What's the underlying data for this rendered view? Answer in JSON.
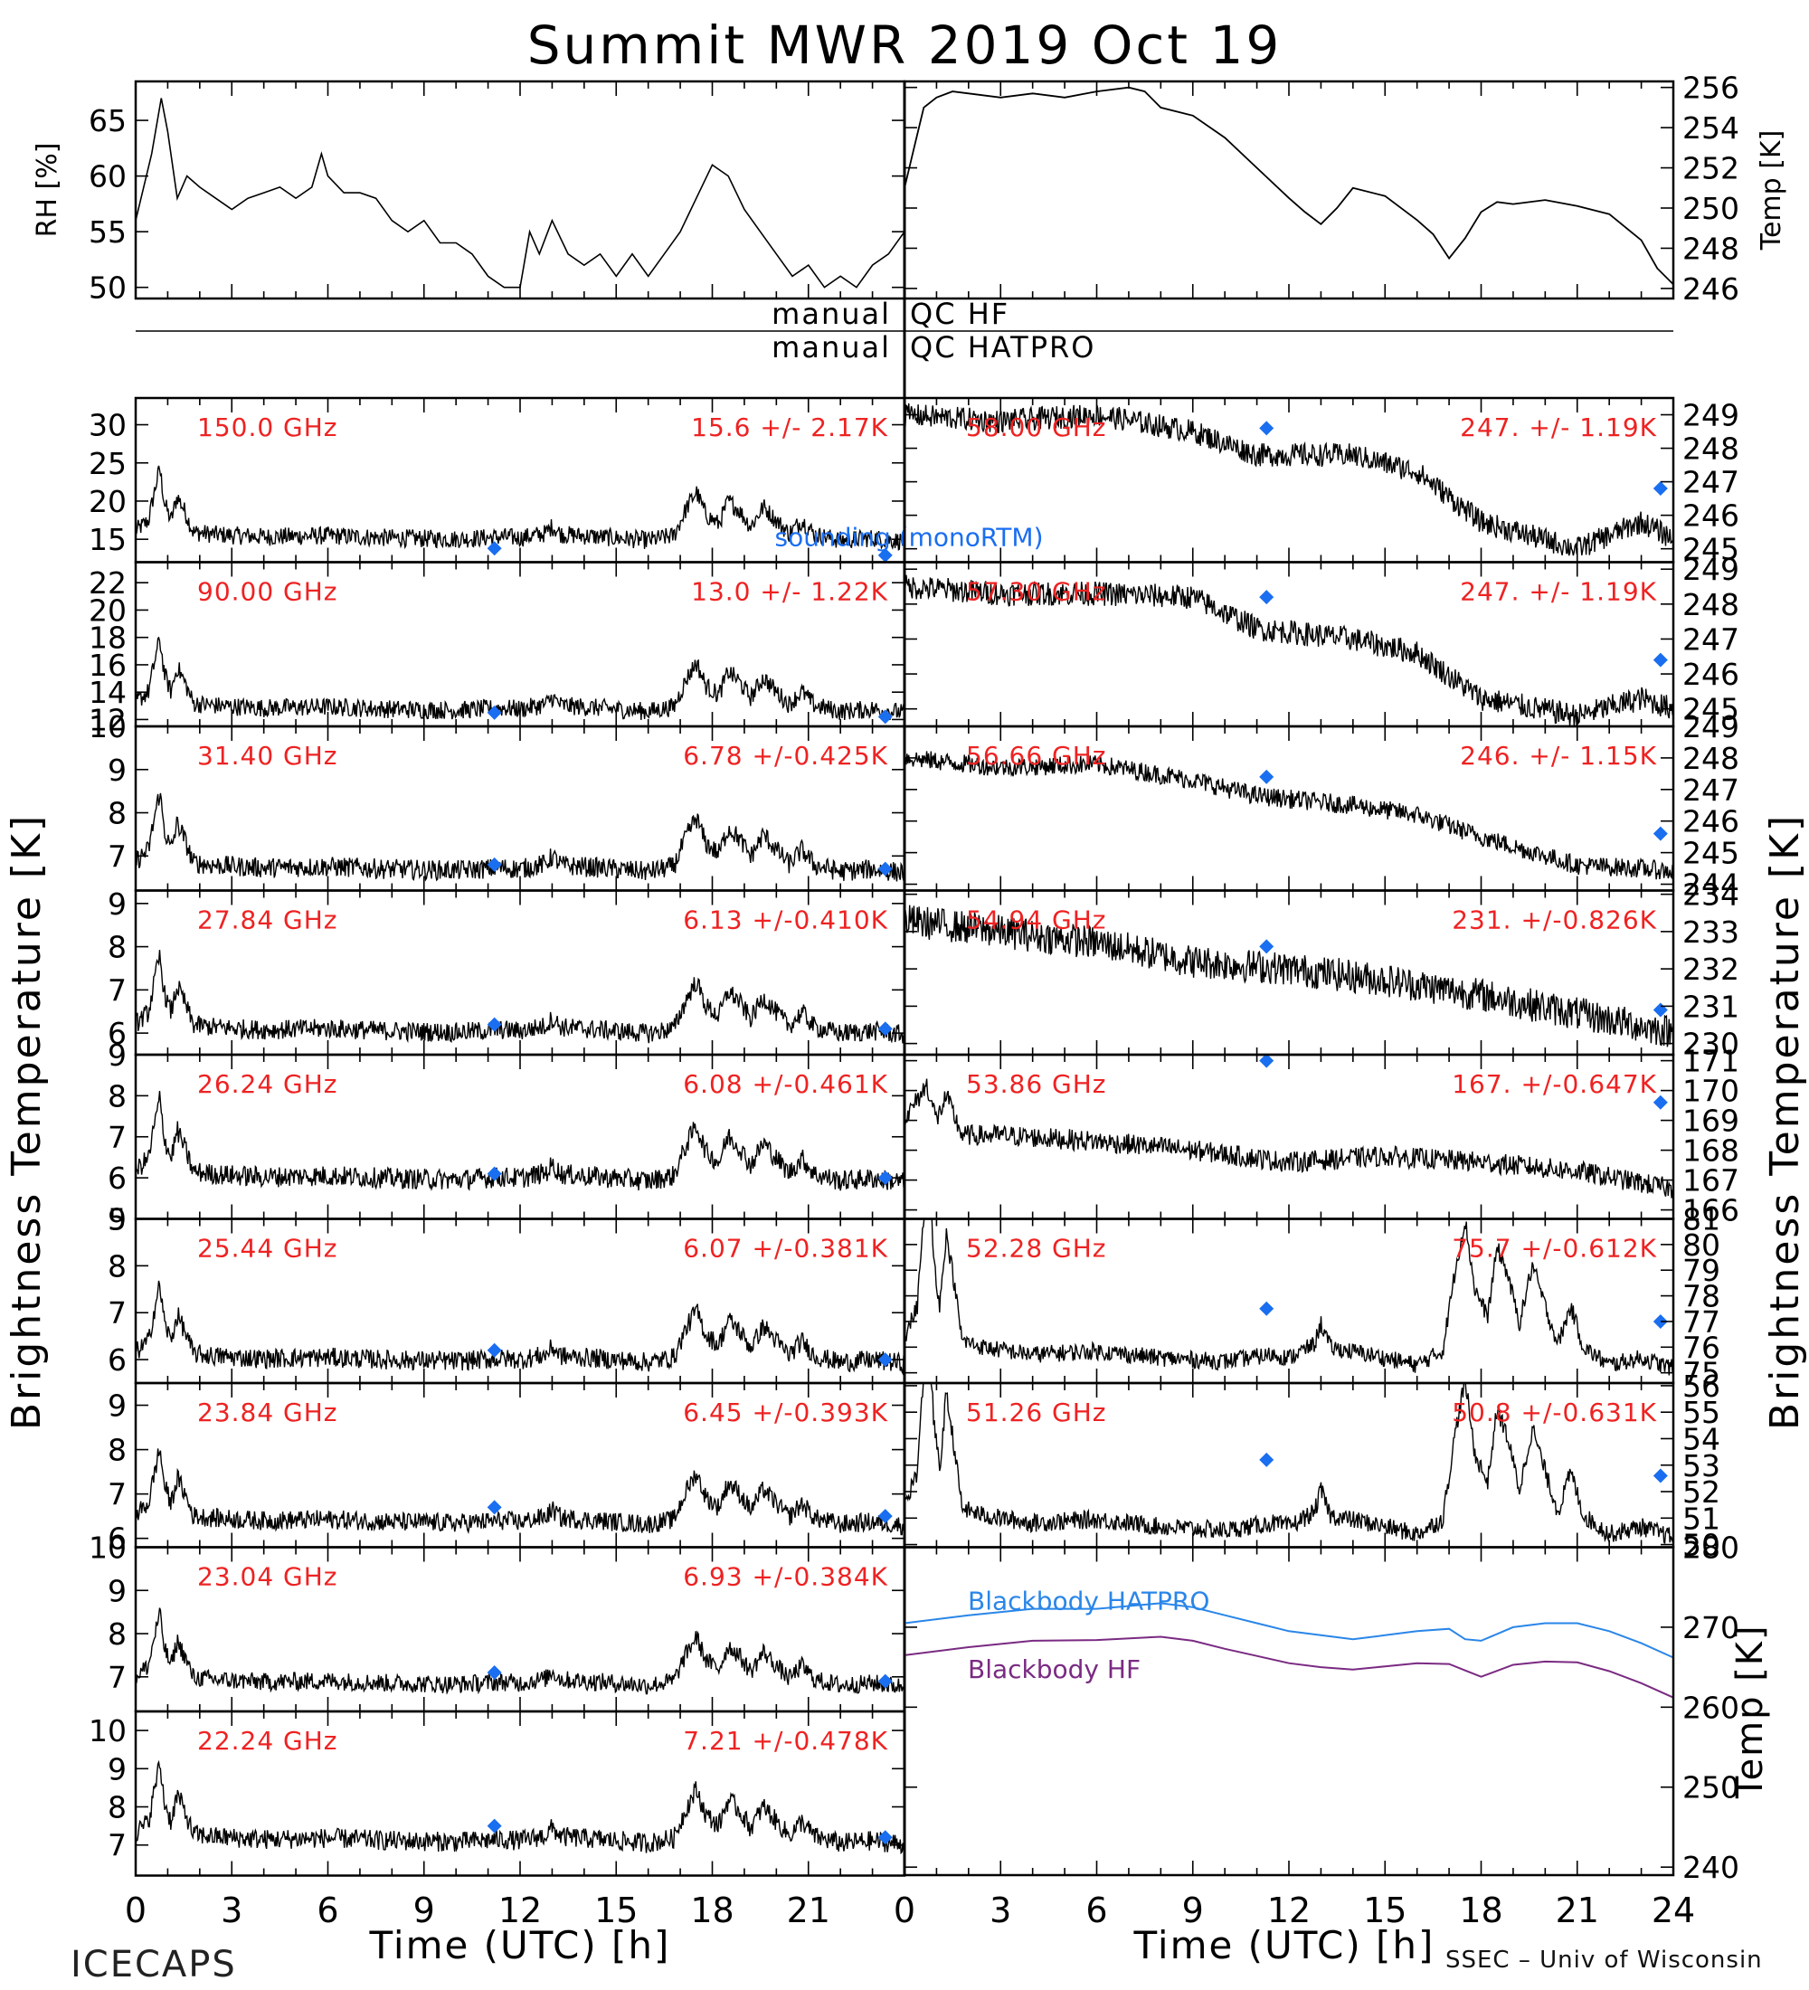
{
  "title": "Summit MWR 2019 Oct 19",
  "footer": {
    "left": "ICECAPS",
    "right": "SSEC – Univ of Wisconsin"
  },
  "colors": {
    "trace": "#000000",
    "sonde": "#1a6ef0",
    "label": "#ee2222",
    "bb_hatpro": "#2a86e8",
    "bb_hf": "#7a2a82"
  },
  "icons": {
    "sonde_marker": "diamond"
  },
  "axes": {
    "left_ylabel": "Brightness Temperature [K]",
    "right_ylabel": "Brightness Temperature [K]",
    "xlabel": "Time (UTC) [h]",
    "xticks": [
      "0",
      "3",
      "6",
      "9",
      "12",
      "15",
      "18",
      "21"
    ],
    "xticks_right": [
      "0",
      "3",
      "6",
      "9",
      "12",
      "15",
      "18",
      "21",
      "24"
    ]
  },
  "qc": {
    "hf": "QC HF",
    "hatpro": "QC HATPRO",
    "manual": "manual"
  },
  "chart_data": [
    {
      "id": "rh",
      "type": "line",
      "ylabel": "RH [%]",
      "xlim": [
        0,
        24
      ],
      "ylim": [
        49,
        68.5
      ],
      "yticks": [
        "50",
        "55",
        "60",
        "65"
      ],
      "x": [
        0,
        0.5,
        0.8,
        1,
        1.3,
        1.6,
        2,
        2.5,
        3,
        3.5,
        4,
        4.5,
        5,
        5.5,
        5.8,
        6,
        6.5,
        7,
        7.5,
        8,
        8.5,
        9,
        9.5,
        10,
        10.5,
        11,
        11.5,
        12,
        12.3,
        12.6,
        13,
        13.5,
        14,
        14.5,
        15,
        15.5,
        16,
        16.5,
        17,
        17.5,
        18,
        18.5,
        19,
        19.5,
        20,
        20.5,
        21,
        21.5,
        22,
        22.5,
        23,
        23.5,
        24
      ],
      "y": [
        56,
        62,
        67,
        64,
        58,
        60,
        59,
        58,
        57,
        58,
        58.5,
        59,
        58,
        59,
        62,
        60,
        58.5,
        58.5,
        58,
        56,
        55,
        56,
        54,
        54,
        53,
        51,
        50,
        50,
        55,
        53,
        56,
        53,
        52,
        53,
        51,
        53,
        51,
        53,
        55,
        58,
        61,
        60,
        57,
        55,
        53,
        51,
        52,
        50,
        51,
        50,
        52,
        53,
        55
      ]
    },
    {
      "id": "temp",
      "type": "line",
      "ylabel": "Temp [K]",
      "xlim": [
        0,
        24
      ],
      "ylim": [
        245.5,
        256.3
      ],
      "yticks": [
        "246",
        "248",
        "250",
        "252",
        "254",
        "256"
      ],
      "x": [
        0,
        0.3,
        0.6,
        1,
        1.5,
        2,
        3,
        4,
        5,
        6,
        7,
        7.5,
        8,
        9,
        10,
        11,
        12,
        12.5,
        13,
        13.5,
        14,
        15,
        16,
        16.5,
        17,
        17.5,
        18,
        18.5,
        19,
        20,
        21,
        22,
        23,
        23.5,
        24
      ],
      "y": [
        251,
        253,
        255,
        255.5,
        255.8,
        255.7,
        255.5,
        255.7,
        255.5,
        255.8,
        256,
        255.8,
        255,
        254.6,
        253.5,
        252,
        250.5,
        249.8,
        249.2,
        250,
        251,
        250.6,
        249.4,
        248.7,
        247.5,
        248.5,
        249.8,
        250.3,
        250.2,
        250.4,
        250.1,
        249.7,
        248.4,
        247,
        246.2
      ]
    },
    {
      "id": "ch150",
      "type": "line",
      "label": "150.0 GHz",
      "stats": "15.6 +/-  2.17K",
      "ylim": [
        12,
        33.5
      ],
      "yticks": [
        "15",
        "20",
        "25",
        "30"
      ],
      "profile": "hf",
      "baseline": 15.6,
      "amp": 2.17,
      "spike_scale": 0.7,
      "sonde": [
        [
          11.2,
          13.8
        ],
        [
          23.4,
          12.9
        ]
      ],
      "extra_text": "sounding (monoRTM)"
    },
    {
      "id": "ch90",
      "type": "line",
      "label": "90.00 GHz",
      "stats": "13.0 +/-  1.22K",
      "ylim": [
        11.5,
        23.5
      ],
      "yticks": [
        "12",
        "14",
        "16",
        "18",
        "20",
        "22"
      ],
      "profile": "hf",
      "baseline": 13.0,
      "amp": 1.22,
      "spike_scale": 0.7,
      "sonde": [
        [
          11.2,
          12.5
        ],
        [
          23.4,
          12.2
        ]
      ]
    },
    {
      "id": "ch3140",
      "type": "line",
      "label": "31.40 GHz",
      "stats": "6.78 +/-0.425K",
      "ylim": [
        6.2,
        10
      ],
      "yticks": [
        "7",
        "8",
        "9",
        "10"
      ],
      "profile": "hf",
      "baseline": 6.78,
      "amp": 0.425,
      "spike_scale": 0.7,
      "sonde": [
        [
          11.2,
          6.8
        ],
        [
          23.4,
          6.7
        ]
      ]
    },
    {
      "id": "ch2784",
      "type": "line",
      "label": "27.84 GHz",
      "stats": "6.13 +/-0.410K",
      "ylim": [
        5.5,
        9.3
      ],
      "yticks": [
        "6",
        "7",
        "8",
        "9"
      ],
      "profile": "hf",
      "baseline": 6.13,
      "amp": 0.41,
      "spike_scale": 0.7,
      "sonde": [
        [
          11.2,
          6.2
        ],
        [
          23.4,
          6.1
        ]
      ]
    },
    {
      "id": "ch2624",
      "type": "line",
      "label": "26.24 GHz",
      "stats": "6.08 +/-0.461K",
      "ylim": [
        5,
        9
      ],
      "yticks": [
        "5",
        "6",
        "7",
        "8",
        "9"
      ],
      "profile": "hf",
      "baseline": 6.08,
      "amp": 0.461,
      "spike_scale": 0.7,
      "sonde": [
        [
          11.2,
          6.1
        ],
        [
          23.4,
          6.0
        ]
      ]
    },
    {
      "id": "ch2544",
      "type": "line",
      "label": "25.44 GHz",
      "stats": "6.07 +/-0.381K",
      "ylim": [
        5.5,
        9
      ],
      "yticks": [
        "6",
        "7",
        "8",
        "9"
      ],
      "profile": "hf",
      "baseline": 6.07,
      "amp": 0.381,
      "spike_scale": 0.7,
      "sonde": [
        [
          11.2,
          6.2
        ],
        [
          23.4,
          6.0
        ]
      ]
    },
    {
      "id": "ch2384",
      "type": "line",
      "label": "23.84 GHz",
      "stats": "6.45 +/-0.393K",
      "ylim": [
        5.8,
        9.5
      ],
      "yticks": [
        "6",
        "7",
        "8",
        "9"
      ],
      "profile": "hf",
      "baseline": 6.45,
      "amp": 0.393,
      "spike_scale": 0.7,
      "sonde": [
        [
          11.2,
          6.7
        ],
        [
          23.4,
          6.5
        ]
      ]
    },
    {
      "id": "ch2304",
      "type": "line",
      "label": "23.04 GHz",
      "stats": "6.93 +/-0.384K",
      "ylim": [
        6.2,
        10
      ],
      "yticks": [
        "7",
        "8",
        "9",
        "10"
      ],
      "profile": "hf",
      "baseline": 6.93,
      "amp": 0.384,
      "spike_scale": 0.7,
      "sonde": [
        [
          11.2,
          7.1
        ],
        [
          23.4,
          6.9
        ]
      ]
    },
    {
      "id": "ch2224",
      "type": "line",
      "label": "22.24 GHz",
      "stats": "7.21 +/-0.478K",
      "ylim": [
        6.2,
        10.5
      ],
      "yticks": [
        "7",
        "8",
        "9",
        "10"
      ],
      "profile": "hf",
      "baseline": 7.21,
      "amp": 0.478,
      "spike_scale": 0.7,
      "sonde": [
        [
          11.2,
          7.5
        ],
        [
          23.4,
          7.2
        ]
      ]
    },
    {
      "id": "ch5800",
      "type": "line",
      "label": "58.00 GHz",
      "stats": "247. +/- 1.19K",
      "ylim": [
        244.6,
        249.5
      ],
      "yticks": [
        "245",
        "246",
        "247",
        "248",
        "249"
      ],
      "profile": "opaque",
      "shape": [
        [
          0,
          249
        ],
        [
          3,
          248.8
        ],
        [
          6,
          249
        ],
        [
          9,
          248.5
        ],
        [
          11,
          247.8
        ],
        [
          14,
          247.8
        ],
        [
          16,
          247.3
        ],
        [
          18,
          245.8
        ],
        [
          21,
          245
        ],
        [
          23,
          245.8
        ],
        [
          24,
          245.3
        ]
      ],
      "noise": 0.35,
      "sonde": [
        [
          11.3,
          248.6
        ],
        [
          23.6,
          246.8
        ]
      ]
    },
    {
      "id": "ch5730",
      "type": "line",
      "label": "57.30 GHz",
      "stats": "247. +/- 1.19K",
      "ylim": [
        244.5,
        249.2
      ],
      "yticks": [
        "245",
        "246",
        "247",
        "248",
        "249"
      ],
      "profile": "opaque",
      "shape": [
        [
          0,
          248.5
        ],
        [
          3,
          248.3
        ],
        [
          6,
          248.3
        ],
        [
          9,
          248.2
        ],
        [
          11,
          247.3
        ],
        [
          14,
          247
        ],
        [
          16,
          246.6
        ],
        [
          18,
          245.3
        ],
        [
          21,
          244.8
        ],
        [
          23,
          245.3
        ],
        [
          24,
          245
        ]
      ],
      "noise": 0.35,
      "sonde": [
        [
          11.3,
          248.2
        ],
        [
          23.6,
          246.4
        ]
      ]
    },
    {
      "id": "ch5666",
      "type": "line",
      "label": "56.66 GHz",
      "stats": "246. +/- 1.15K",
      "ylim": [
        243.8,
        249
      ],
      "yticks": [
        "244",
        "245",
        "246",
        "247",
        "248",
        "249"
      ],
      "profile": "opaque",
      "shape": [
        [
          0,
          248
        ],
        [
          3,
          247.7
        ],
        [
          6,
          247.8
        ],
        [
          9,
          247.3
        ],
        [
          11,
          246.8
        ],
        [
          14,
          246.5
        ],
        [
          16,
          246.2
        ],
        [
          18,
          245.5
        ],
        [
          21,
          244.6
        ],
        [
          23,
          244.5
        ],
        [
          24,
          244.4
        ]
      ],
      "noise": 0.3,
      "sonde": [
        [
          11.3,
          247.4
        ],
        [
          23.6,
          245.6
        ]
      ]
    },
    {
      "id": "ch5494",
      "type": "line",
      "label": "54.94 GHz",
      "stats": "231. +/-0.826K",
      "ylim": [
        229.7,
        234.1
      ],
      "yticks": [
        "230",
        "231",
        "232",
        "233",
        "234"
      ],
      "profile": "opaque",
      "shape": [
        [
          0,
          233.3
        ],
        [
          3,
          233
        ],
        [
          6,
          232.7
        ],
        [
          9,
          232.2
        ],
        [
          12,
          232
        ],
        [
          15,
          231.7
        ],
        [
          18,
          231.3
        ],
        [
          21,
          230.8
        ],
        [
          24,
          230.3
        ]
      ],
      "noise": 0.45,
      "sonde": [
        [
          11.3,
          232.6
        ],
        [
          23.6,
          230.9
        ]
      ]
    },
    {
      "id": "ch5386",
      "type": "line",
      "label": "53.86 GHz",
      "stats": "167. +/-0.647K",
      "ylim": [
        165.7,
        171.2
      ],
      "yticks": [
        "166",
        "167",
        "168",
        "169",
        "170",
        "171"
      ],
      "profile": "semi",
      "shape": [
        [
          0,
          169
        ],
        [
          0.7,
          170.2
        ],
        [
          1,
          169
        ],
        [
          1.3,
          169.8
        ],
        [
          1.8,
          168.5
        ],
        [
          3,
          168.5
        ],
        [
          6,
          168.3
        ],
        [
          9,
          168
        ],
        [
          12,
          167.6
        ],
        [
          15,
          167.8
        ],
        [
          18,
          167.6
        ],
        [
          21,
          167.3
        ],
        [
          24,
          166.7
        ]
      ],
      "noise": 0.35,
      "sonde": [
        [
          11.3,
          171
        ],
        [
          23.6,
          169.6
        ]
      ]
    },
    {
      "id": "ch5228",
      "type": "line",
      "label": "52.28 GHz",
      "stats": "75.7 +/-0.612K",
      "ylim": [
        74.6,
        81
      ],
      "yticks": [
        "75",
        "76",
        "77",
        "78",
        "79",
        "80",
        "81"
      ],
      "profile": "hf",
      "baseline": 75.7,
      "amp": 0.612,
      "spike_scale": 2.2,
      "sonde": [
        [
          11.3,
          77.5
        ],
        [
          23.6,
          77
        ]
      ]
    },
    {
      "id": "ch5126",
      "type": "line",
      "label": "51.26 GHz",
      "stats": "50.8 +/-0.631K",
      "ylim": [
        49.9,
        56.1
      ],
      "yticks": [
        "50",
        "51",
        "52",
        "53",
        "54",
        "55",
        "56"
      ],
      "profile": "hf",
      "baseline": 50.8,
      "amp": 0.631,
      "spike_scale": 2.2,
      "sonde": [
        [
          11.3,
          53.2
        ],
        [
          23.6,
          52.6
        ]
      ]
    },
    {
      "id": "blackbody",
      "type": "line",
      "ylabel": "Temp [K]",
      "xlim": [
        0,
        24
      ],
      "ylim": [
        239,
        280
      ],
      "yticks": [
        "240",
        "250",
        "260",
        "270",
        "280"
      ],
      "series": [
        {
          "name": "Blackbody HATPRO",
          "x": [
            0,
            2,
            4,
            6,
            8,
            9,
            10,
            11,
            12,
            13,
            14,
            15,
            16,
            17,
            17.5,
            18,
            19,
            20,
            21,
            22,
            23,
            24
          ],
          "y": [
            270.5,
            271.5,
            272.3,
            272.3,
            273,
            272.5,
            271.5,
            270.5,
            269.5,
            269,
            268.5,
            269,
            269.5,
            269.8,
            268.5,
            268.3,
            270,
            270.5,
            270.5,
            269.5,
            268,
            266.2
          ]
        },
        {
          "name": "Blackbody HF",
          "x": [
            0,
            2,
            4,
            6,
            8,
            9,
            10,
            11,
            12,
            13,
            14,
            15,
            16,
            17,
            17.5,
            18,
            19,
            20,
            21,
            22,
            23,
            24
          ],
          "y": [
            266.5,
            267.5,
            268.3,
            268.4,
            268.8,
            268.3,
            267.3,
            266.4,
            265.5,
            265,
            264.7,
            265.1,
            265.5,
            265.4,
            264.6,
            263.8,
            265.3,
            265.7,
            265.6,
            264.5,
            263,
            261.2
          ]
        }
      ]
    }
  ]
}
